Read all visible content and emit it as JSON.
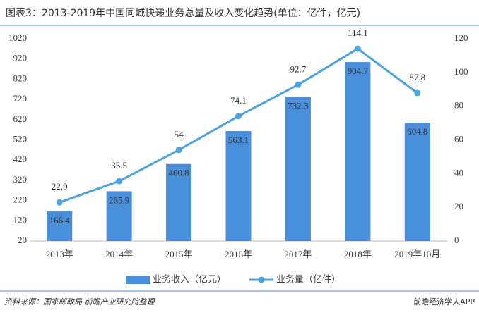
{
  "chart_data": {
    "type": "bar-line",
    "title": "图表3：2013-2019年中国同城快递业务总量及收入变化趋势(单位：亿件，亿元)",
    "source": "资料来源：国家邮政局 前瞻产业研究院整理",
    "brand": "前瞻经济学人APP",
    "categories": [
      "2013年",
      "2014年",
      "2015年",
      "2016年",
      "2017年",
      "2018年",
      "2019年10月"
    ],
    "series": [
      {
        "name": "业务收入（亿元）",
        "type": "bar",
        "color": "#4a8fdc",
        "values": [
          166.4,
          265.9,
          400.8,
          563.1,
          732.3,
          904.7,
          604.8
        ]
      },
      {
        "name": "业务量（亿件）",
        "type": "line",
        "axis": "y2",
        "color": "#4aa3df",
        "values": [
          22.9,
          35.5,
          54,
          74.1,
          92.7,
          114.1,
          87.8
        ]
      }
    ],
    "ylim": [
      20,
      1020
    ],
    "yticks": [
      20,
      120,
      220,
      320,
      420,
      520,
      620,
      720,
      820,
      920,
      1020
    ],
    "y2lim": [
      0,
      120
    ],
    "y2ticks": [
      0,
      20,
      40,
      60,
      80,
      100,
      120
    ],
    "legend": "bottom"
  }
}
